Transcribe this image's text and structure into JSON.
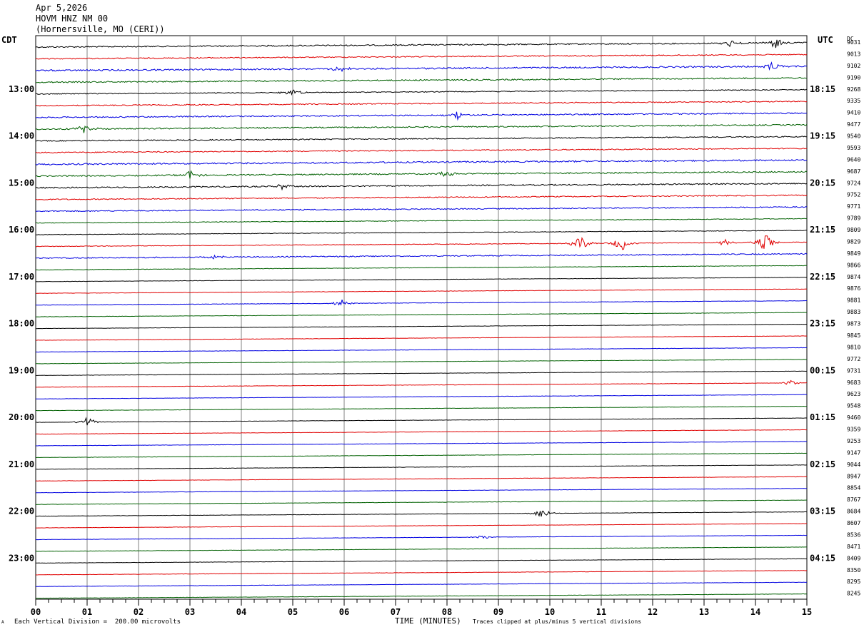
{
  "header": {
    "date": "Apr 5,2026",
    "station": "HOVM HNZ NM 00",
    "location": "(Hornersville, MO (CERI))"
  },
  "left_tz": "CDT",
  "right_tz": "UTC",
  "dc_label": "DC",
  "footer": {
    "scale": "Each Vertical Division =  200.00 microvolts",
    "xlabel": "TIME (MINUTES)",
    "clip_note": "Traces clipped at plus/minus 5 vertical divisions",
    "corner_mark": "A"
  },
  "colors": {
    "trace_cycle": [
      "#000000",
      "#e00000",
      "#0000e0",
      "#006000"
    ],
    "grid": "#808080"
  },
  "chart_data": {
    "type": "line",
    "title": "HOVM HNZ NM 00",
    "xlabel": "TIME (MINUTES)",
    "ylabel": "",
    "x_ticks": [
      "00",
      "01",
      "02",
      "03",
      "04",
      "05",
      "06",
      "07",
      "08",
      "09",
      "10",
      "11",
      "12",
      "13",
      "14",
      "15"
    ],
    "xlim": [
      0,
      15
    ],
    "lines_per_hour": 4,
    "left_hour_labels": [
      "13:00",
      "14:00",
      "15:00",
      "16:00",
      "17:00",
      "18:00",
      "19:00",
      "20:00",
      "21:00",
      "22:00",
      "23:00"
    ],
    "right_hour_labels": [
      "18:15",
      "19:15",
      "20:15",
      "21:15",
      "22:15",
      "23:15",
      "00:15",
      "01:15",
      "02:15",
      "03:15",
      "04:15"
    ],
    "dc_offsets": [
      9031,
      9013,
      9102,
      9190,
      9268,
      9335,
      9410,
      9477,
      9540,
      9593,
      9640,
      9687,
      9724,
      9752,
      9771,
      9789,
      9809,
      9829,
      9849,
      9866,
      9874,
      9876,
      9881,
      9883,
      9873,
      9845,
      9810,
      9772,
      9731,
      9683,
      9623,
      9548,
      9460,
      9359,
      9253,
      9147,
      9044,
      8947,
      8854,
      8767,
      8684,
      8607,
      8536,
      8471,
      8409,
      8350,
      8295,
      8245
    ],
    "noise_level": [
      0.3,
      0.25,
      0.35,
      0.3,
      0.2,
      0.25,
      0.3,
      0.3,
      0.25,
      0.25,
      0.35,
      0.3,
      0.3,
      0.25,
      0.25,
      0.15,
      0.12,
      0.15,
      0.25,
      0.1,
      0.08,
      0.08,
      0.1,
      0.08,
      0.07,
      0.07,
      0.07,
      0.07,
      0.07,
      0.08,
      0.07,
      0.07,
      0.07,
      0.07,
      0.07,
      0.07,
      0.07,
      0.07,
      0.07,
      0.07,
      0.07,
      0.07,
      0.07,
      0.07,
      0.07,
      0.07,
      0.07,
      0.07
    ],
    "events": [
      {
        "trace": 0,
        "minute": 14.4,
        "amp": 1.2
      },
      {
        "trace": 0,
        "minute": 13.5,
        "amp": 0.6
      },
      {
        "trace": 2,
        "minute": 14.3,
        "amp": 1.0
      },
      {
        "trace": 2,
        "minute": 5.9,
        "amp": 0.6
      },
      {
        "trace": 4,
        "minute": 5.0,
        "amp": 0.8
      },
      {
        "trace": 6,
        "minute": 8.2,
        "amp": 0.8
      },
      {
        "trace": 7,
        "minute": 0.95,
        "amp": 0.8
      },
      {
        "trace": 11,
        "minute": 3.0,
        "amp": 0.9
      },
      {
        "trace": 11,
        "minute": 8.0,
        "amp": 0.6
      },
      {
        "trace": 12,
        "minute": 4.8,
        "amp": 0.6
      },
      {
        "trace": 17,
        "minute": 10.6,
        "amp": 1.4
      },
      {
        "trace": 17,
        "minute": 11.4,
        "amp": 1.6
      },
      {
        "trace": 17,
        "minute": 14.2,
        "amp": 2.0
      },
      {
        "trace": 17,
        "minute": 13.4,
        "amp": 0.6
      },
      {
        "trace": 18,
        "minute": 3.5,
        "amp": 0.5
      },
      {
        "trace": 22,
        "minute": 5.95,
        "amp": 0.8
      },
      {
        "trace": 29,
        "minute": 14.7,
        "amp": 0.5
      },
      {
        "trace": 32,
        "minute": 1.0,
        "amp": 1.0
      },
      {
        "trace": 40,
        "minute": 9.85,
        "amp": 1.0
      },
      {
        "trace": 42,
        "minute": 8.7,
        "amp": 0.4
      }
    ]
  }
}
